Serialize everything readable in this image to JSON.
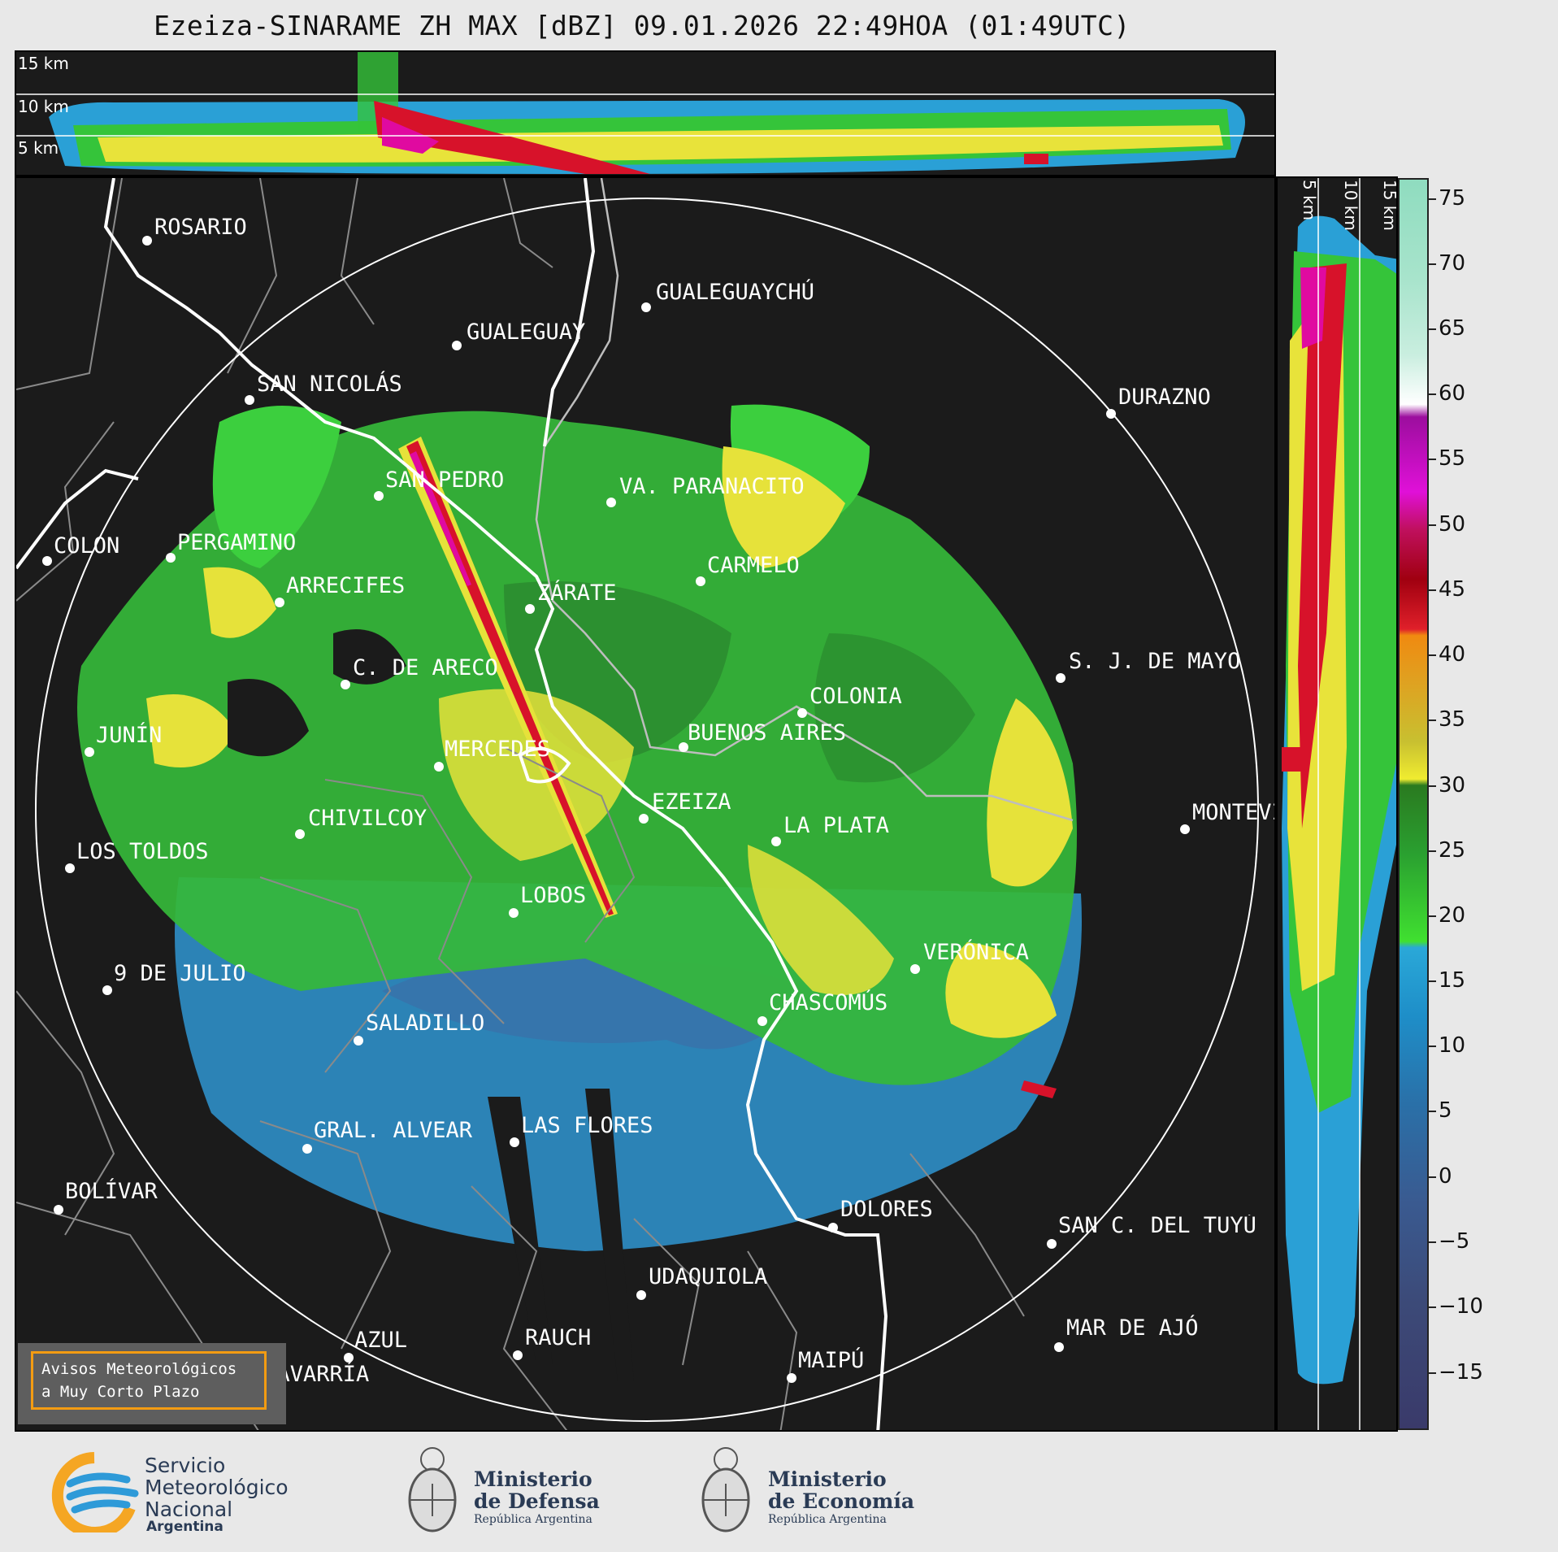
{
  "title": "Ezeiza-SINARAME ZH MAX [dBZ] 09.01.2026 22:49HOA (01:49UTC)",
  "top_panel": {
    "height_labels": [
      "15 km",
      "10 km",
      "5 km"
    ]
  },
  "side_panel": {
    "height_labels": [
      "5 km",
      "10 km",
      "15 km"
    ]
  },
  "cities": [
    {
      "name": "ROSARIO"
    },
    {
      "name": "GUALEGUAYCHÚ"
    },
    {
      "name": "GUALEGUAY"
    },
    {
      "name": "SAN NICOLÁS"
    },
    {
      "name": "DURAZNO"
    },
    {
      "name": "SAN PEDRO"
    },
    {
      "name": "VA. PARANACITO"
    },
    {
      "name": "COLON"
    },
    {
      "name": "PERGAMINO"
    },
    {
      "name": "CARMELO"
    },
    {
      "name": "ARRECIFES"
    },
    {
      "name": "ZÁRATE"
    },
    {
      "name": "S. J. DE MAYO"
    },
    {
      "name": "C. DE ARECO"
    },
    {
      "name": "COLONIA"
    },
    {
      "name": "JUNÍN"
    },
    {
      "name": "BUENOS AIRES"
    },
    {
      "name": "MERCEDES"
    },
    {
      "name": "EZEIZA"
    },
    {
      "name": "MONTEVIDEO"
    },
    {
      "name": "CHIVILCOY"
    },
    {
      "name": "LA PLATA"
    },
    {
      "name": "LOS TOLDOS"
    },
    {
      "name": "LOBOS"
    },
    {
      "name": "VERÓNICA"
    },
    {
      "name": "9 DE JULIO"
    },
    {
      "name": "CHASCOMÚS"
    },
    {
      "name": "SALADILLO"
    },
    {
      "name": "GRAL. ALVEAR"
    },
    {
      "name": "LAS FLORES"
    },
    {
      "name": "BOLÍVAR"
    },
    {
      "name": "DOLORES"
    },
    {
      "name": "SAN C. DEL TUYÚ"
    },
    {
      "name": "UDAQUIOLA"
    },
    {
      "name": "MAR DE AJÓ"
    },
    {
      "name": "AZUL"
    },
    {
      "name": "RAUCH"
    },
    {
      "name": "OLAVARRÍA"
    },
    {
      "name": "MAIPÚ"
    }
  ],
  "colorbar": {
    "ticks": [
      "75",
      "70",
      "65",
      "60",
      "55",
      "50",
      "45",
      "40",
      "35",
      "30",
      "25",
      "20",
      "15",
      "10",
      "5",
      "0",
      "−5",
      "−10",
      "−15"
    ]
  },
  "warning": {
    "line1": "Avisos Meteorológicos",
    "line2": "a Muy Corto Plazo"
  },
  "logos": {
    "smn": {
      "line1": "Servicio",
      "line2": "Meteorológico",
      "line3": "Nacional",
      "line4": "Argentina"
    },
    "defensa": {
      "line1": "Ministerio",
      "line2": "de Defensa",
      "line3": "República Argentina"
    },
    "economia": {
      "line1": "Ministerio",
      "line2": "de Economía",
      "line3": "República Argentina"
    }
  },
  "colors": {
    "panel": "#1b1b1b",
    "accent": "#f39c12"
  }
}
